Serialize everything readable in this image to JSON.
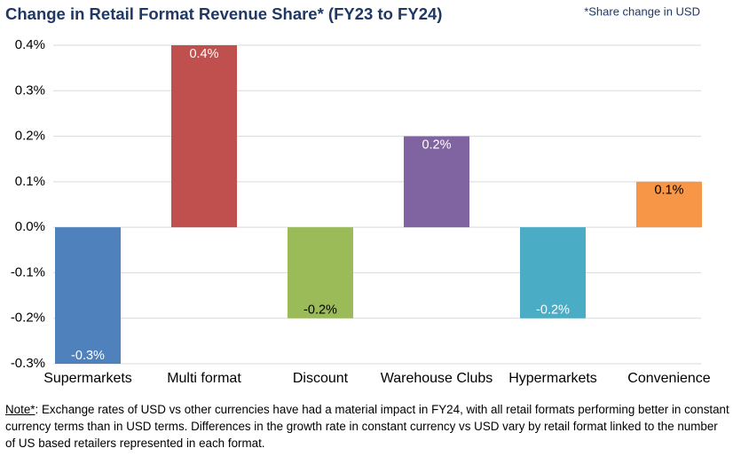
{
  "chart_data": {
    "type": "bar",
    "title": "Change in Retail Format Revenue Share* (FY23 to FY24)",
    "subtitle": "*Share change in USD",
    "categories": [
      "Supermarkets",
      "Multi format",
      "Discount",
      "Warehouse Clubs",
      "Hypermarkets",
      "Convenience"
    ],
    "values": [
      -0.3,
      0.4,
      -0.2,
      0.2,
      -0.2,
      0.1
    ],
    "value_labels": [
      "-0.3%",
      "0.4%",
      "-0.2%",
      "0.2%",
      "-0.2%",
      "0.1%"
    ],
    "colors": [
      "#4f81bd",
      "#c0504d",
      "#9bbb59",
      "#8064a2",
      "#4bacc6",
      "#f79646"
    ],
    "value_label_colors": [
      "#ffffff",
      "#ffffff",
      "#000000",
      "#ffffff",
      "#ffffff",
      "#000000"
    ],
    "ylim": [
      -0.3,
      0.4
    ],
    "yticks": [
      {
        "value": -0.3,
        "label": "-0.3%"
      },
      {
        "value": -0.2,
        "label": "-0.2%"
      },
      {
        "value": -0.1,
        "label": "-0.1%"
      },
      {
        "value": 0,
        "label": "0.0%"
      },
      {
        "value": 0.1,
        "label": "0.1%"
      },
      {
        "value": 0.2,
        "label": "0.2%"
      },
      {
        "value": 0.3,
        "label": "0.3%"
      },
      {
        "value": 0.4,
        "label": "0.4%"
      }
    ],
    "grid": true
  },
  "note": {
    "label": "Note*",
    "text": ": Exchange rates of USD vs other currencies have had a material impact in FY24, with all retail formats performing better in constant currency terms than in USD terms. Differences in the growth rate in constant currency vs USD vary by retail format linked to the number of US based retailers represented in each format."
  }
}
